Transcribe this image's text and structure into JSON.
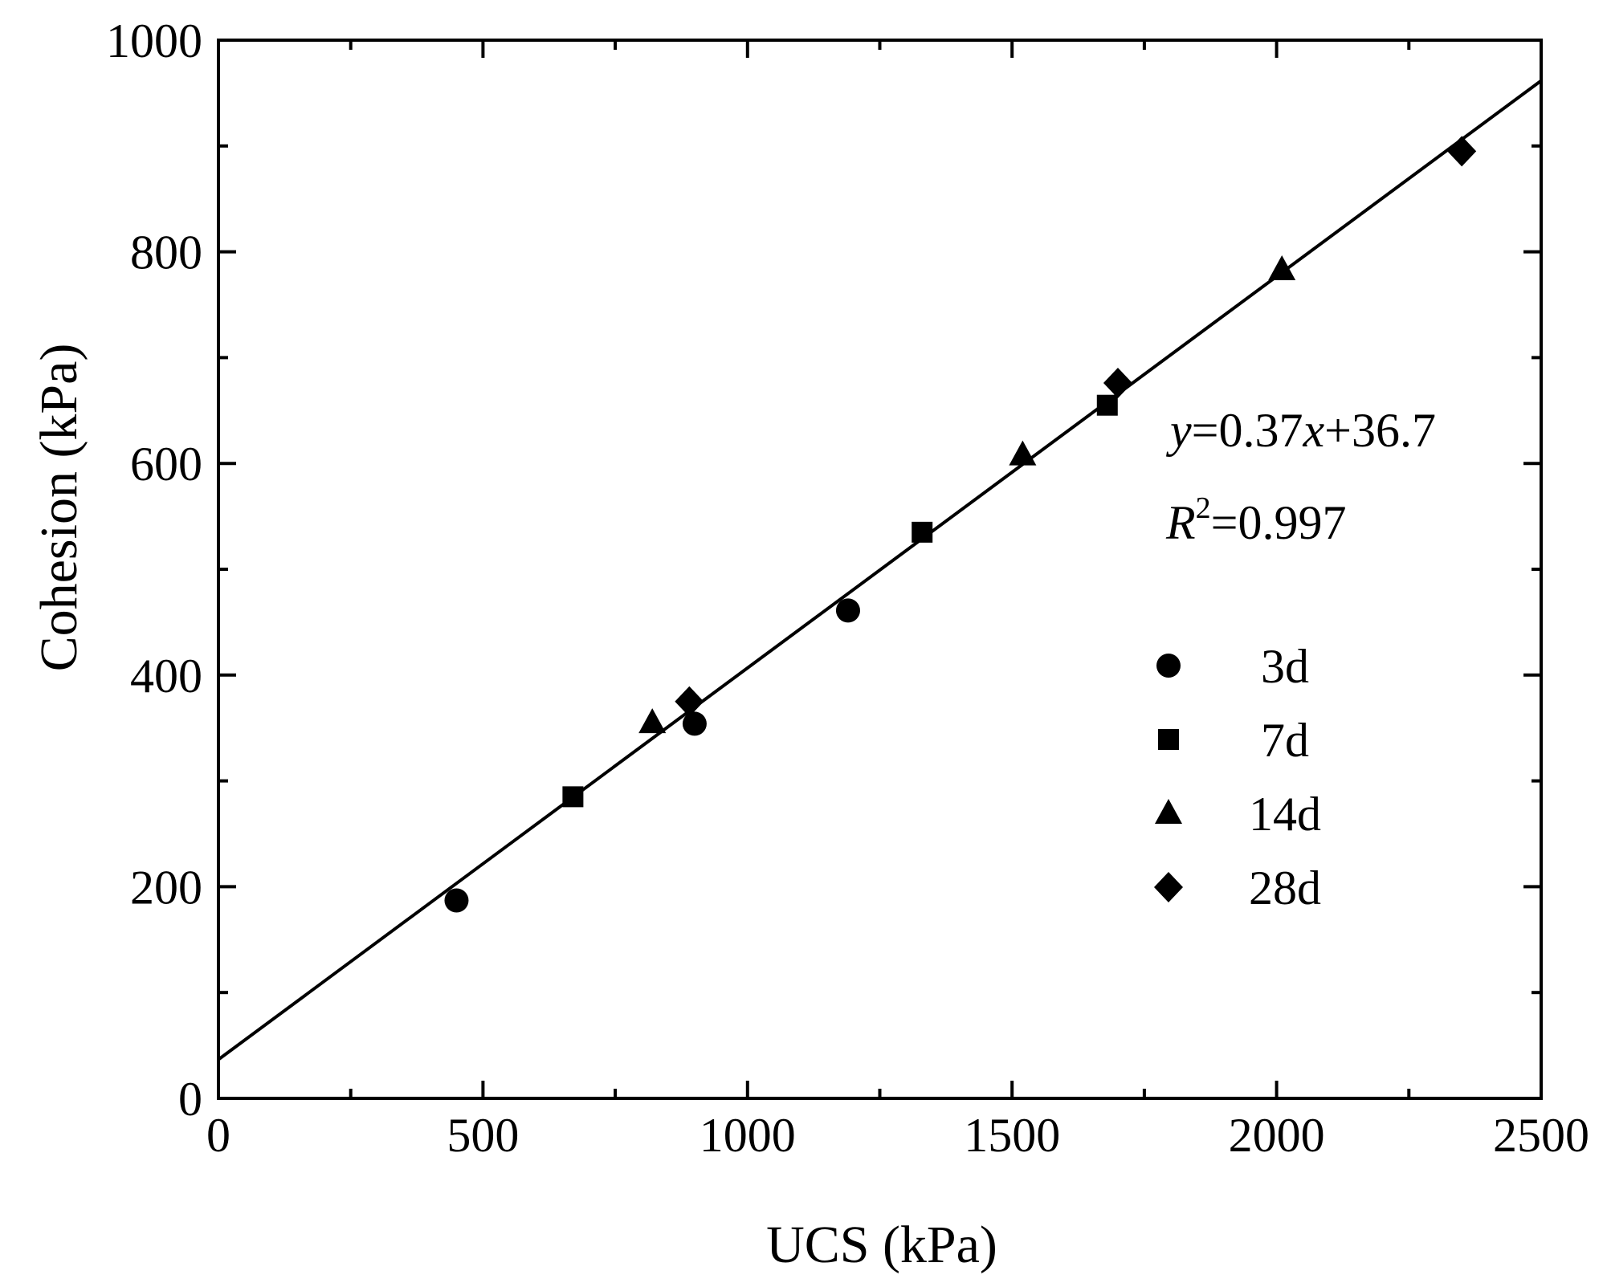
{
  "chart_data": {
    "type": "scatter",
    "title": "",
    "xlabel": "UCS (kPa)",
    "ylabel": "Cohesion (kPa)",
    "xlim": [
      0,
      2500
    ],
    "ylim": [
      0,
      1000
    ],
    "x_ticks": [
      0,
      500,
      1000,
      1500,
      2000,
      2500
    ],
    "x_tick_labels": [
      "0",
      "500",
      "1000",
      "1500",
      "2000",
      "2500"
    ],
    "y_ticks": [
      0,
      200,
      400,
      600,
      800,
      1000
    ],
    "y_tick_labels": [
      "0",
      "200",
      "400",
      "600",
      "800",
      "1000"
    ],
    "grid": false,
    "legend_position": "right-middle",
    "series": [
      {
        "name": "3d",
        "marker": "circle",
        "x": [
          450,
          900,
          1190
        ],
        "y": [
          187,
          354,
          461
        ]
      },
      {
        "name": "7d",
        "marker": "square",
        "x": [
          670,
          1330,
          1680
        ],
        "y": [
          285,
          535,
          655
        ]
      },
      {
        "name": "14d",
        "marker": "triangle",
        "x": [
          820,
          1520,
          2010
        ],
        "y": [
          355,
          608,
          783
        ]
      },
      {
        "name": "28d",
        "marker": "diamond",
        "x": [
          890,
          1700,
          2350
        ],
        "y": [
          375,
          676,
          895
        ]
      }
    ],
    "fit": {
      "slope": 0.37,
      "intercept": 36.7,
      "equation_text": {
        "y": "y",
        "eq1": "=0.37",
        "x": "x",
        "eq2": "+36.7"
      },
      "r2_text": {
        "r": "R",
        "sup": "2",
        "eq": "=0.997"
      }
    },
    "colors": {
      "axis": "#000000",
      "marker": "#000000",
      "line": "#000000"
    }
  }
}
